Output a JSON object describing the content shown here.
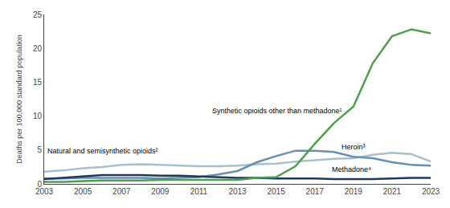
{
  "chart_data": {
    "type": "line",
    "y_label": "Deaths per 100,000 standard population",
    "x": [
      2003,
      2004,
      2005,
      2006,
      2007,
      2008,
      2009,
      2010,
      2011,
      2012,
      2013,
      2014,
      2015,
      2016,
      2017,
      2018,
      2019,
      2020,
      2021,
      2022,
      2023
    ],
    "series": [
      {
        "name": "Natural and semisynthetic opioids²",
        "color": "#a8bfcf",
        "values": [
          1.8,
          2.0,
          2.3,
          2.5,
          2.8,
          2.9,
          2.8,
          2.7,
          2.6,
          2.6,
          2.7,
          2.9,
          3.0,
          3.3,
          3.5,
          3.7,
          3.8,
          4.3,
          4.6,
          4.4,
          3.3
        ]
      },
      {
        "name": "Heroin³",
        "color": "#6a8fad",
        "values": [
          0.8,
          0.8,
          0.9,
          0.9,
          0.9,
          0.9,
          0.8,
          0.9,
          1.0,
          1.4,
          1.9,
          3.2,
          4.1,
          4.9,
          4.9,
          4.7,
          4.0,
          3.8,
          3.2,
          2.8,
          2.7
        ]
      },
      {
        "name": "Methadone⁴",
        "color": "#1c3a5e",
        "values": [
          0.7,
          0.9,
          1.1,
          1.3,
          1.3,
          1.3,
          1.2,
          1.2,
          1.1,
          1.0,
          0.9,
          0.9,
          0.8,
          0.8,
          0.8,
          0.7,
          0.7,
          0.7,
          0.8,
          0.9,
          0.9
        ]
      },
      {
        "name": "Synthetic opioids other than methadone¹",
        "color": "#4e9e4e",
        "values": [
          0.3,
          0.3,
          0.4,
          0.5,
          0.5,
          0.5,
          0.6,
          0.6,
          0.6,
          0.6,
          0.6,
          0.9,
          1.0,
          2.6,
          5.9,
          9.0,
          11.4,
          17.8,
          21.8,
          22.8,
          22.2
        ]
      }
    ],
    "xlim": [
      2003,
      2023
    ],
    "xticks": [
      2003,
      2005,
      2007,
      2009,
      2011,
      2013,
      2015,
      2017,
      2019,
      2021,
      2023
    ],
    "ylim": [
      0,
      25
    ],
    "yticks": [
      0,
      5,
      10,
      15,
      20,
      25
    ],
    "grid": false
  }
}
